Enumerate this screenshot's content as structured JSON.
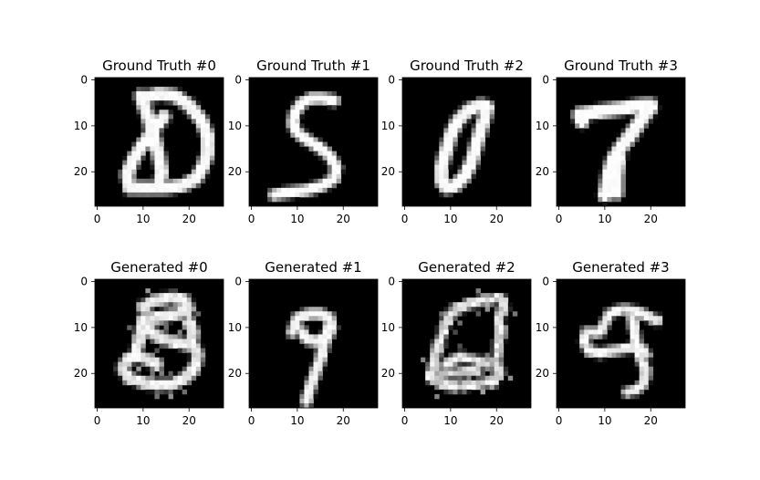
{
  "chart_data": {
    "type": "heatmap",
    "colormap": "gray",
    "background_color": "#000000",
    "foreground_color": "#ffffff",
    "xlim": [
      -0.5,
      27.5
    ],
    "ylim": [
      27.5,
      -0.5
    ],
    "xticks": [
      0,
      10,
      20
    ],
    "yticks": [
      0,
      10,
      20
    ],
    "panels": [
      {
        "title": "Ground Truth #0",
        "strokes": [
          [
            [
              9.5,
              3.5
            ],
            [
              11,
              8
            ],
            [
              12.5,
              13
            ],
            [
              13.5,
              17
            ],
            [
              14,
              20
            ],
            [
              13.5,
              23
            ]
          ],
          [
            [
              10,
              4
            ],
            [
              13.5,
              3
            ],
            [
              17,
              3.5
            ],
            [
              20,
              5.5
            ],
            [
              22.5,
              8.5
            ],
            [
              24,
              12
            ],
            [
              24,
              16
            ],
            [
              23,
              19
            ],
            [
              21.5,
              21.5
            ],
            [
              18.5,
              23
            ],
            [
              15,
              23.5
            ],
            [
              11,
              23.5
            ],
            [
              7,
              23.5
            ]
          ],
          [
            [
              7,
              23
            ],
            [
              6.5,
              20.5
            ],
            [
              8,
              17
            ],
            [
              10,
              14
            ],
            [
              12,
              11
            ],
            [
              14.5,
              8
            ]
          ]
        ],
        "width": 2.6,
        "noise": 0.05
      },
      {
        "title": "Ground Truth #1",
        "strokes": [
          [
            [
              18,
              4.5
            ],
            [
              15.5,
              4
            ],
            [
              13,
              4
            ],
            [
              11,
              5
            ],
            [
              9.5,
              7
            ],
            [
              9,
              9.5
            ],
            [
              10,
              11.5
            ],
            [
              12,
              13
            ],
            [
              14.5,
              14.5
            ],
            [
              17,
              16.5
            ],
            [
              18.5,
              19
            ],
            [
              18,
              21.5
            ],
            [
              15.5,
              23
            ],
            [
              12,
              24
            ],
            [
              8,
              24.5
            ],
            [
              5,
              25
            ]
          ]
        ],
        "width": 2.2,
        "noise": 0.03
      },
      {
        "title": "Ground Truth #2",
        "strokes": [
          [
            [
              16.5,
              5.5
            ],
            [
              14,
              6.5
            ],
            [
              11.5,
              9
            ],
            [
              10,
              12
            ],
            [
              9,
              15.5
            ],
            [
              8,
              19
            ],
            [
              8,
              22
            ],
            [
              9,
              23.5
            ],
            [
              11,
              23
            ],
            [
              13,
              21
            ],
            [
              14.5,
              18
            ],
            [
              15.5,
              14.5
            ],
            [
              16.5,
              11
            ],
            [
              17.5,
              8
            ],
            [
              18,
              6
            ],
            [
              17,
              5.5
            ]
          ]
        ],
        "width": 2.6,
        "noise": 0.04
      },
      {
        "title": "Ground Truth #3",
        "strokes": [
          [
            [
              4.5,
              7.5
            ],
            [
              8,
              7
            ],
            [
              11.5,
              6.5
            ],
            [
              15,
              6
            ],
            [
              18.5,
              5.5
            ],
            [
              20,
              5.5
            ]
          ],
          [
            [
              4.5,
              7.5
            ],
            [
              5,
              9
            ]
          ],
          [
            [
              20,
              6
            ],
            [
              18,
              8.5
            ],
            [
              16,
              11.5
            ],
            [
              14,
              14
            ],
            [
              12,
              17
            ],
            [
              11,
              20
            ],
            [
              10.5,
              23
            ],
            [
              10,
              25
            ]
          ],
          [
            [
              13,
              17
            ],
            [
              12.5,
              21
            ],
            [
              12.5,
              24.5
            ]
          ]
        ],
        "width": 2.8,
        "noise": 0.03
      },
      {
        "title": "Generated #0",
        "strokes": [
          [
            [
              10,
              5.5
            ],
            [
              13,
              4
            ],
            [
              16,
              3.5
            ],
            [
              19,
              4
            ],
            [
              20,
              6
            ]
          ],
          [
            [
              20,
              6
            ],
            [
              18,
              7
            ],
            [
              15,
              7.5
            ],
            [
              12,
              8
            ],
            [
              10,
              8
            ]
          ],
          [
            [
              10,
              8
            ],
            [
              11,
              10.5
            ],
            [
              13,
              12
            ],
            [
              16,
              13
            ],
            [
              19,
              13.5
            ],
            [
              21,
              14
            ],
            [
              22,
              16
            ],
            [
              21,
              19
            ],
            [
              19,
              21
            ],
            [
              16,
              22.5
            ],
            [
              13,
              22.5
            ],
            [
              10,
              22
            ],
            [
              7,
              21
            ],
            [
              5.5,
              19
            ],
            [
              6.5,
              17
            ],
            [
              8.5,
              16
            ],
            [
              11,
              17
            ],
            [
              13,
              18
            ]
          ],
          [
            [
              10,
              8
            ],
            [
              9.5,
              11
            ],
            [
              9,
              13
            ],
            [
              8.5,
              15
            ]
          ],
          [
            [
              20,
              9
            ],
            [
              21,
              11
            ],
            [
              20.5,
              13
            ]
          ]
        ],
        "width": 2.5,
        "noise": 0.18
      },
      {
        "title": "Generated #1",
        "strokes": [
          [
            [
              9,
              11
            ],
            [
              10,
              8
            ],
            [
              12.5,
              7
            ],
            [
              15,
              7
            ],
            [
              17,
              8
            ],
            [
              17.5,
              10
            ],
            [
              16.5,
              12
            ],
            [
              14,
              13
            ],
            [
              12,
              12.5
            ],
            [
              11,
              11
            ]
          ],
          [
            [
              17,
              9
            ],
            [
              16,
              13
            ],
            [
              15,
              17
            ],
            [
              13.5,
              21
            ],
            [
              12.5,
              24
            ],
            [
              12,
              26
            ]
          ]
        ],
        "width": 2.2,
        "noise": 0.08
      },
      {
        "title": "Generated #2",
        "strokes": [
          [
            [
              11,
              6
            ],
            [
              14.5,
              4.5
            ],
            [
              18,
              4
            ],
            [
              21,
              3.5
            ],
            [
              21.5,
              6
            ],
            [
              20.5,
              8
            ]
          ],
          [
            [
              11,
              6
            ],
            [
              9,
              9
            ],
            [
              8,
              12
            ],
            [
              7,
              15
            ],
            [
              6.5,
              18
            ],
            [
              5.5,
              21
            ]
          ],
          [
            [
              20.5,
              8
            ],
            [
              21,
              11
            ],
            [
              20.5,
              14
            ],
            [
              20,
              17
            ],
            [
              20.5,
              20
            ],
            [
              19,
              22
            ]
          ],
          [
            [
              5.5,
              21
            ],
            [
              8,
              22.5
            ],
            [
              11,
              23
            ],
            [
              14,
              22.5
            ],
            [
              17,
              22
            ],
            [
              19,
              22
            ]
          ],
          [
            [
              9,
              18
            ],
            [
              12,
              16.5
            ],
            [
              15,
              17
            ],
            [
              18,
              18
            ]
          ],
          [
            [
              8,
              20
            ],
            [
              12,
              20
            ],
            [
              16,
              19.5
            ]
          ]
        ],
        "width": 2.3,
        "noise": 0.3
      },
      {
        "title": "Generated #3",
        "strokes": [
          [
            [
              11,
              7
            ],
            [
              14,
              6
            ],
            [
              17,
              6.5
            ],
            [
              19,
              7.5
            ],
            [
              21.5,
              8.5
            ]
          ],
          [
            [
              11,
              7
            ],
            [
              10,
              9
            ],
            [
              9,
              11
            ],
            [
              6,
              11
            ],
            [
              5.5,
              13
            ],
            [
              6.5,
              15
            ],
            [
              9,
              15.5
            ],
            [
              12,
              15
            ],
            [
              15,
              14.5
            ],
            [
              18,
              14.5
            ],
            [
              19,
              16
            ]
          ],
          [
            [
              16,
              8
            ],
            [
              16.5,
              11
            ],
            [
              17,
              14
            ],
            [
              18,
              17
            ],
            [
              19,
              19.5
            ],
            [
              18.5,
              22
            ],
            [
              17,
              23.5
            ],
            [
              15,
              24
            ]
          ]
        ],
        "width": 2.1,
        "noise": 0.14
      }
    ]
  }
}
